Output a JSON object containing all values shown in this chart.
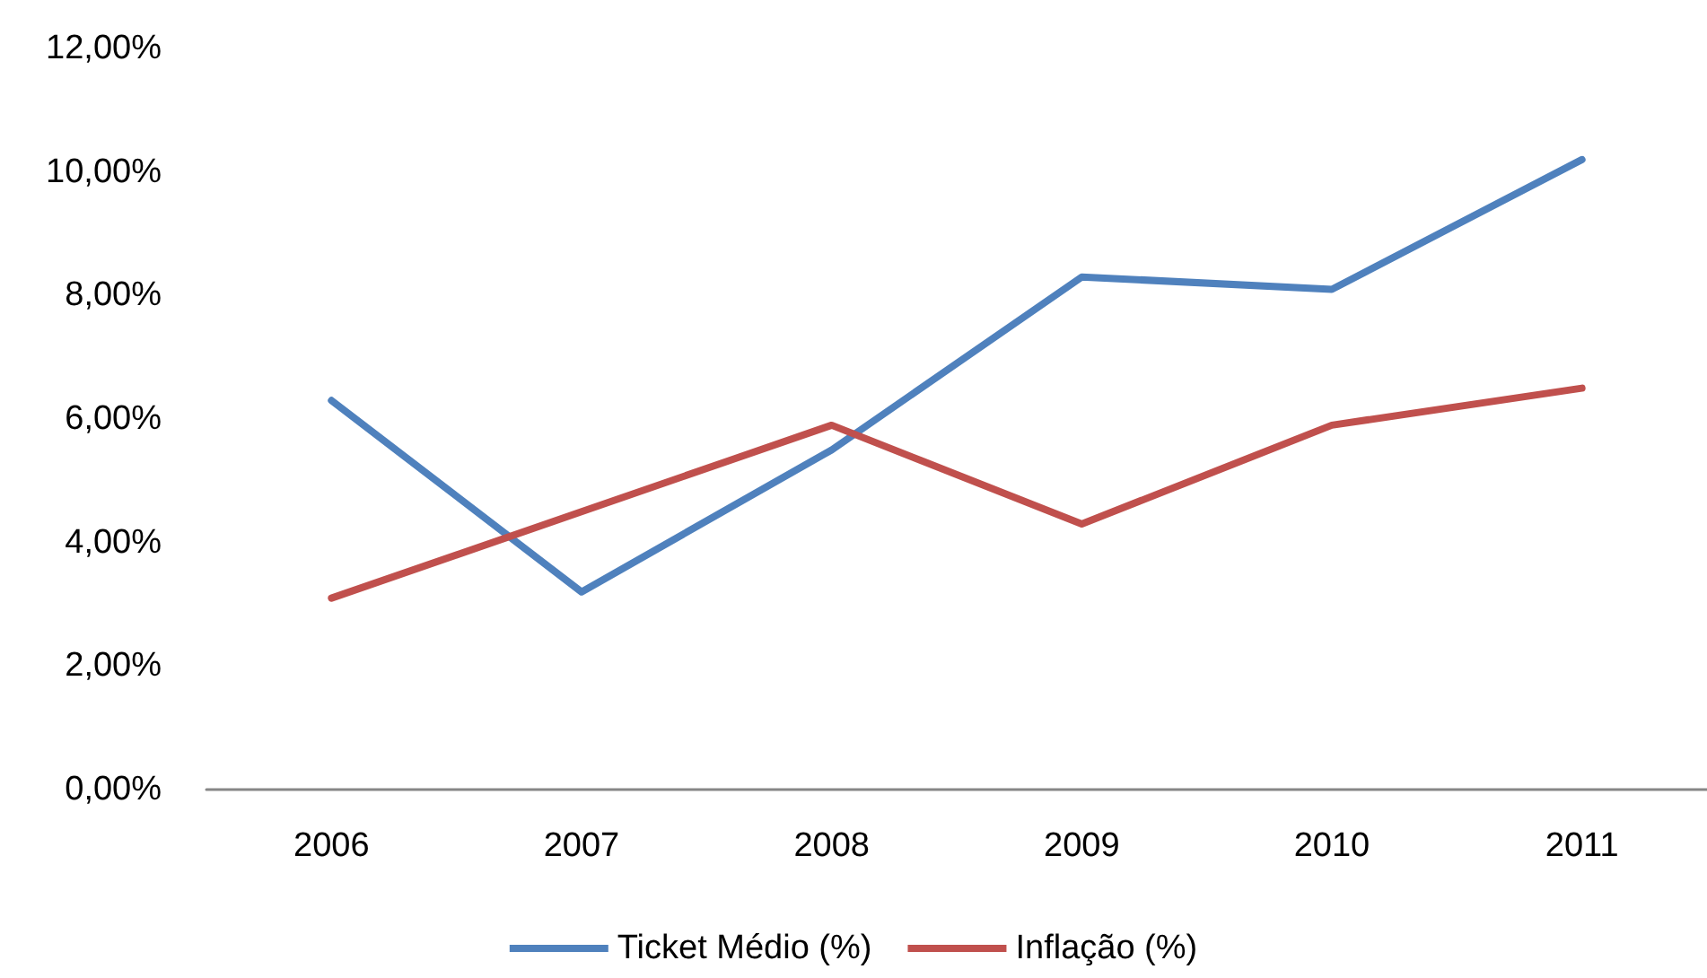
{
  "chart_data": {
    "type": "line",
    "categories": [
      "2006",
      "2007",
      "2008",
      "2009",
      "2010",
      "2011"
    ],
    "series": [
      {
        "name": "Ticket Médio (%)",
        "color": "#4f81bd",
        "values": [
          6.3,
          3.2,
          5.5,
          8.3,
          8.1,
          10.2
        ]
      },
      {
        "name": "Inflação (%)",
        "color": "#c0504d",
        "values": [
          3.1,
          4.5,
          5.9,
          4.3,
          5.9,
          6.5
        ]
      }
    ],
    "ylim": [
      0,
      12
    ],
    "yticks": [
      {
        "value": 0,
        "label": "0,00%"
      },
      {
        "value": 2,
        "label": "2,00%"
      },
      {
        "value": 4,
        "label": "4,00%"
      },
      {
        "value": 6,
        "label": "6,00%"
      },
      {
        "value": 8,
        "label": "8,00%"
      },
      {
        "value": 10,
        "label": "10,00%"
      },
      {
        "value": 12,
        "label": "12,00%"
      }
    ],
    "grid": false,
    "legend": "bottom",
    "marker": "none",
    "line_style": "solid"
  }
}
